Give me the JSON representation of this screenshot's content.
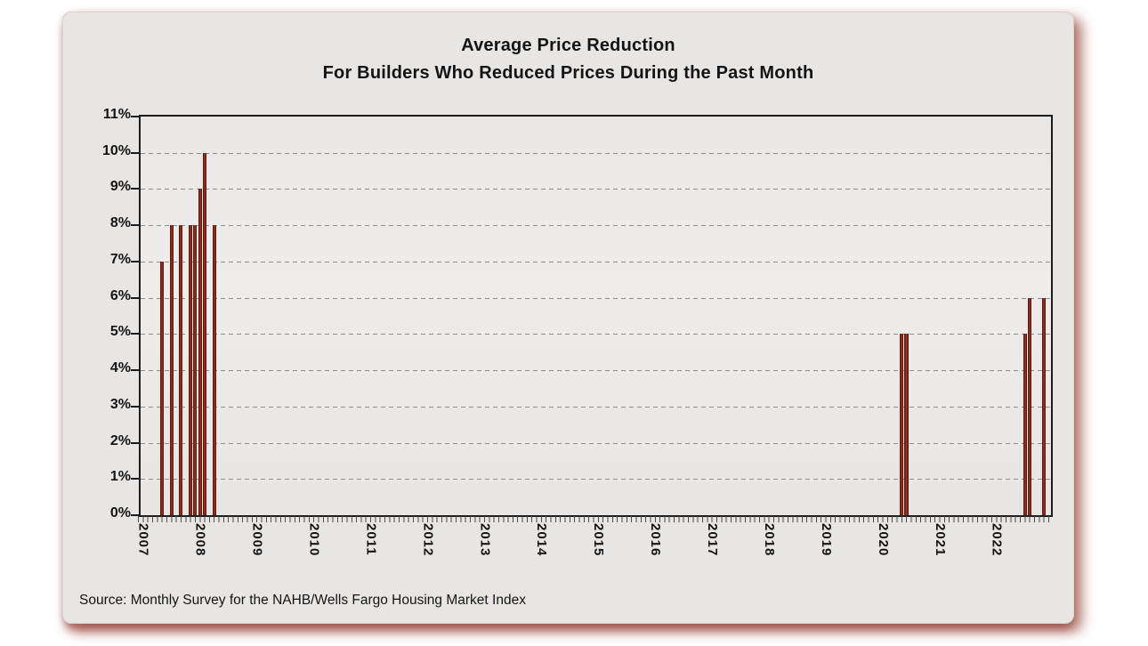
{
  "title": "Average Price Reduction",
  "subtitle": "For Builders Who Reduced Prices During the Past Month",
  "source": "Source: Monthly Survey for the NAHB/Wells Fargo Housing Market Index",
  "colors": {
    "bar_dark": "#4e130c",
    "bar_mid": "#7c2217",
    "bar_light": "#a23d2a",
    "panel_bg": "#e8e6e4",
    "axis": "#1c1c1c",
    "gridline": "#8e8e8e",
    "panel_shadow": "#94453a"
  },
  "chart_data": {
    "type": "bar",
    "title": "Average Price Reduction",
    "subtitle": "For Builders Who Reduced Prices During the Past Month",
    "xlabel": "",
    "ylabel": "",
    "y_unit": "%",
    "ylim": [
      0,
      11
    ],
    "y_tick_labels": [
      "0%",
      "1%",
      "2%",
      "3%",
      "4%",
      "5%",
      "6%",
      "7%",
      "8%",
      "9%",
      "10%",
      "11%"
    ],
    "grid": "dashed horizontal at each 1%",
    "legend": "none",
    "x_axis": {
      "start": "2007-01",
      "end": "2022-12",
      "months_total": 192,
      "minor_ticks": "monthly",
      "year_labels": [
        "2007",
        "2008",
        "2009",
        "2010",
        "2011",
        "2012",
        "2013",
        "2014",
        "2015",
        "2016",
        "2017",
        "2018",
        "2019",
        "2020",
        "2021",
        "2022"
      ],
      "label_rotation_deg": 90
    },
    "bars": [
      {
        "period": "2007-05",
        "month_index": 4,
        "value_pct": 7
      },
      {
        "period": "2007-07",
        "month_index": 6,
        "value_pct": 8
      },
      {
        "period": "2007-09",
        "month_index": 8,
        "value_pct": 8
      },
      {
        "period": "2007-11",
        "month_index": 10,
        "value_pct": 8
      },
      {
        "period": "2007-12",
        "month_index": 11,
        "value_pct": 8
      },
      {
        "period": "2008-01",
        "month_index": 12,
        "value_pct": 9
      },
      {
        "period": "2008-02",
        "month_index": 13,
        "value_pct": 10
      },
      {
        "period": "2008-04",
        "month_index": 15,
        "value_pct": 8
      },
      {
        "period": "2020-05",
        "month_index": 160,
        "value_pct": 5
      },
      {
        "period": "2020-06",
        "month_index": 161,
        "value_pct": 5
      },
      {
        "period": "2022-07",
        "month_index": 186,
        "value_pct": 5
      },
      {
        "period": "2022-08",
        "month_index": 187,
        "value_pct": 6
      },
      {
        "period": "2022-11",
        "month_index": 190,
        "value_pct": 6
      }
    ]
  }
}
